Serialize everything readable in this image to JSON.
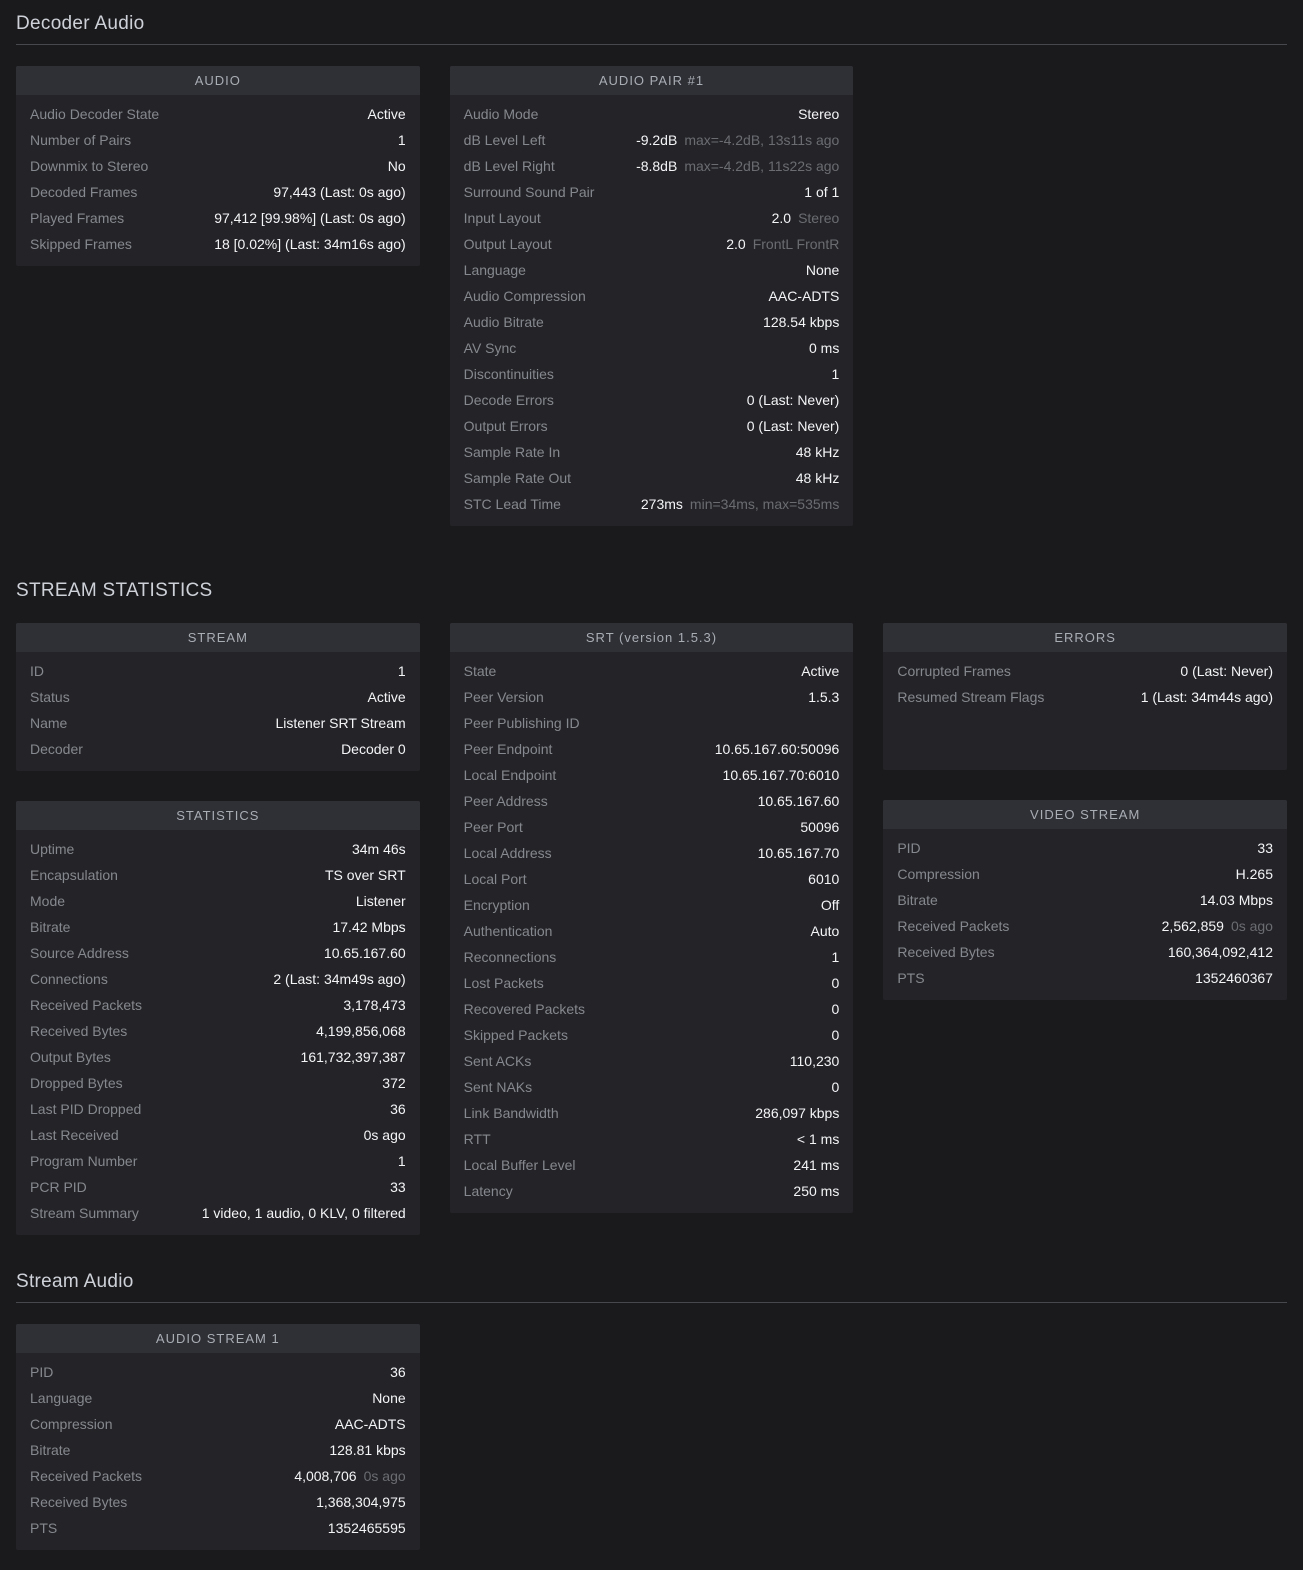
{
  "colors": {
    "page_background": "#1a1a1d",
    "card_background": "#242428",
    "card_header_background": "#2f3036",
    "label_text": "#85888e",
    "value_text": "#f4f5f7",
    "detail_text": "#6a6c72",
    "section_title_text": "#ced2d8"
  },
  "sections": [
    {
      "title": "Decoder Audio",
      "underline": true,
      "columns": [
        {
          "cards": [
            {
              "name": "audio",
              "title": "AUDIO",
              "rows": [
                {
                  "label": "Audio Decoder State",
                  "value": "Active"
                },
                {
                  "label": "Number of Pairs",
                  "value": "1"
                },
                {
                  "label": "Downmix to Stereo",
                  "value": "No"
                },
                {
                  "label": "Decoded Frames",
                  "value": "97,443 (Last: 0s ago)"
                },
                {
                  "label": "Played Frames",
                  "value": "97,412 [99.98%] (Last: 0s ago)"
                },
                {
                  "label": "Skipped Frames",
                  "value": "18 [0.02%] (Last: 34m16s ago)"
                }
              ]
            }
          ]
        },
        {
          "cards": [
            {
              "name": "audio-pair-1",
              "title": "AUDIO PAIR #1",
              "rows": [
                {
                  "label": "Audio Mode",
                  "value": "Stereo"
                },
                {
                  "label": "dB Level Left",
                  "value": "-9.2dB",
                  "detail": "max=-4.2dB, 13s11s ago"
                },
                {
                  "label": "dB Level Right",
                  "value": "-8.8dB",
                  "detail": "max=-4.2dB, 11s22s ago"
                },
                {
                  "label": "Surround Sound Pair",
                  "value": "1 of 1"
                },
                {
                  "label": "Input Layout",
                  "value": "2.0",
                  "detail": "Stereo"
                },
                {
                  "label": "Output Layout",
                  "value": "2.0",
                  "detail": "FrontL FrontR"
                },
                {
                  "label": "Language",
                  "value": "None"
                },
                {
                  "label": "Audio Compression",
                  "value": "AAC-ADTS"
                },
                {
                  "label": "Audio Bitrate",
                  "value": "128.54 kbps"
                },
                {
                  "label": "AV Sync",
                  "value": "0 ms"
                },
                {
                  "label": "Discontinuities",
                  "value": "1"
                },
                {
                  "label": "Decode Errors",
                  "value": "0 (Last: Never)"
                },
                {
                  "label": "Output Errors",
                  "value": "0 (Last: Never)"
                },
                {
                  "label": "Sample Rate In",
                  "value": "48 kHz"
                },
                {
                  "label": "Sample Rate Out",
                  "value": "48 kHz"
                },
                {
                  "label": "STC Lead Time",
                  "value": "273ms",
                  "detail": "min=34ms, max=535ms"
                }
              ]
            }
          ]
        },
        {
          "cards": []
        }
      ]
    },
    {
      "title": "STREAM STATISTICS",
      "underline": false,
      "columns": [
        {
          "cards": [
            {
              "name": "stream",
              "title": "STREAM",
              "rows": [
                {
                  "label": "ID",
                  "value": "1"
                },
                {
                  "label": "Status",
                  "value": "Active"
                },
                {
                  "label": "Name",
                  "value": "Listener SRT Stream"
                },
                {
                  "label": "Decoder",
                  "value": "Decoder 0"
                }
              ]
            },
            {
              "name": "statistics",
              "title": "STATISTICS",
              "rows": [
                {
                  "label": "Uptime",
                  "value": "34m 46s"
                },
                {
                  "label": "Encapsulation",
                  "value": "TS over SRT"
                },
                {
                  "label": "Mode",
                  "value": "Listener"
                },
                {
                  "label": "Bitrate",
                  "value": "17.42 Mbps"
                },
                {
                  "label": "Source Address",
                  "value": "10.65.167.60"
                },
                {
                  "label": "Connections",
                  "value": "2 (Last: 34m49s ago)"
                },
                {
                  "label": "Received Packets",
                  "value": "3,178,473"
                },
                {
                  "label": "Received Bytes",
                  "value": "4,199,856,068"
                },
                {
                  "label": "Output Bytes",
                  "value": "161,732,397,387"
                },
                {
                  "label": "Dropped Bytes",
                  "value": "372"
                },
                {
                  "label": "Last PID Dropped",
                  "value": "36"
                },
                {
                  "label": "Last Received",
                  "value": "0s ago"
                },
                {
                  "label": "Program Number",
                  "value": "1"
                },
                {
                  "label": "PCR PID",
                  "value": "33"
                },
                {
                  "label": "Stream Summary",
                  "value": "1 video, 1 audio, 0 KLV, 0 filtered"
                }
              ]
            }
          ]
        },
        {
          "cards": [
            {
              "name": "srt",
              "title": "SRT (version 1.5.3)",
              "rows": [
                {
                  "label": "State",
                  "value": "Active"
                },
                {
                  "label": "Peer Version",
                  "value": "1.5.3"
                },
                {
                  "label": "Peer Publishing ID",
                  "value": ""
                },
                {
                  "label": "Peer Endpoint",
                  "value": "10.65.167.60:50096"
                },
                {
                  "label": "Local Endpoint",
                  "value": "10.65.167.70:6010"
                },
                {
                  "label": "Peer Address",
                  "value": "10.65.167.60"
                },
                {
                  "label": "Peer Port",
                  "value": "50096"
                },
                {
                  "label": "Local Address",
                  "value": "10.65.167.70"
                },
                {
                  "label": "Local Port",
                  "value": "6010"
                },
                {
                  "label": "Encryption",
                  "value": "Off"
                },
                {
                  "label": "Authentication",
                  "value": "Auto"
                },
                {
                  "label": "Reconnections",
                  "value": "1"
                },
                {
                  "label": "Lost Packets",
                  "value": "0"
                },
                {
                  "label": "Recovered Packets",
                  "value": "0"
                },
                {
                  "label": "Skipped Packets",
                  "value": "0"
                },
                {
                  "label": "Sent ACKs",
                  "value": "110,230"
                },
                {
                  "label": "Sent NAKs",
                  "value": "0"
                },
                {
                  "label": "Link Bandwidth",
                  "value": "286,097 kbps"
                },
                {
                  "label": "RTT",
                  "value": "< 1 ms"
                },
                {
                  "label": "Local Buffer Level",
                  "value": "241 ms"
                },
                {
                  "label": "Latency",
                  "value": "250 ms"
                }
              ]
            }
          ]
        },
        {
          "cards": [
            {
              "name": "errors",
              "title": "ERRORS",
              "rows": [
                {
                  "label": "Corrupted Frames",
                  "value": "0 (Last: Never)"
                },
                {
                  "label": "Resumed Stream Flags",
                  "value": "1 (Last: 34m44s ago)"
                }
              ]
            },
            {
              "name": "video-stream",
              "title": "VIDEO STREAM",
              "rows": [
                {
                  "label": "PID",
                  "value": "33"
                },
                {
                  "label": "Compression",
                  "value": "H.265"
                },
                {
                  "label": "Bitrate",
                  "value": "14.03 Mbps"
                },
                {
                  "label": "Received Packets",
                  "value": "2,562,859",
                  "detail": "0s ago"
                },
                {
                  "label": "Received Bytes",
                  "value": "160,364,092,412"
                },
                {
                  "label": "PTS",
                  "value": "1352460367"
                }
              ]
            }
          ]
        }
      ]
    },
    {
      "title": "Stream Audio",
      "underline": true,
      "columns": [
        {
          "cards": [
            {
              "name": "audio-stream-1",
              "title": "AUDIO STREAM 1",
              "rows": [
                {
                  "label": "PID",
                  "value": "36"
                },
                {
                  "label": "Language",
                  "value": "None"
                },
                {
                  "label": "Compression",
                  "value": "AAC-ADTS"
                },
                {
                  "label": "Bitrate",
                  "value": "128.81 kbps"
                },
                {
                  "label": "Received Packets",
                  "value": "4,008,706",
                  "detail": "0s ago"
                },
                {
                  "label": "Received Bytes",
                  "value": "1,368,304,975"
                },
                {
                  "label": "PTS",
                  "value": "1352465595"
                }
              ]
            }
          ]
        },
        {
          "cards": []
        },
        {
          "cards": []
        }
      ]
    }
  ]
}
